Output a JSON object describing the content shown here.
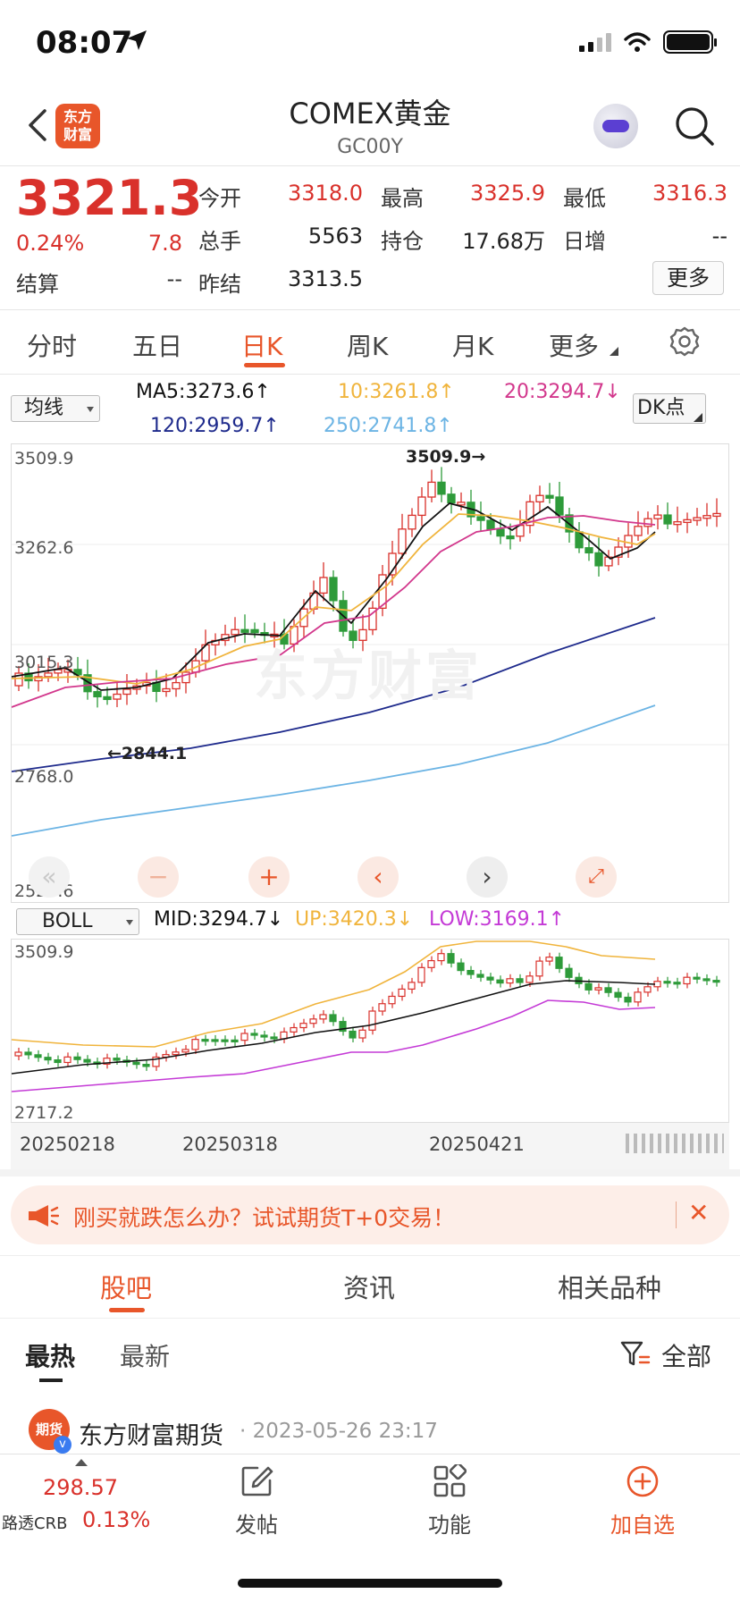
{
  "status": {
    "time": "08:07"
  },
  "header": {
    "title": "COMEX黄金",
    "subtitle": "GC00Y",
    "logo_line1": "东方",
    "logo_line2": "财富"
  },
  "quote": {
    "price": "3321.3",
    "change_pct": "0.24%",
    "change": "7.8",
    "settle_label": "结算",
    "settle": "--",
    "open_label": "今开",
    "open": "3318.0",
    "high_label": "最高",
    "high": "3325.9",
    "low_label": "最低",
    "low": "3316.3",
    "volume_label": "总手",
    "volume": "5563",
    "oi_label": "持仓",
    "oi": "17.68万",
    "daily_inc_label": "日增",
    "daily_inc": "--",
    "prev_settle_label": "昨结",
    "prev_settle": "3313.5",
    "more": "更多"
  },
  "period_tabs": [
    "分时",
    "五日",
    "日K",
    "周K",
    "月K",
    "更多"
  ],
  "ma": {
    "selector": "均线",
    "ma5": "MA5:3273.6↑",
    "ma10": "10:3261.8↑",
    "ma20": "20:3294.7↓",
    "ma120": "120:2959.7↑",
    "ma250": "250:2741.8↑",
    "dk_button": "DK点",
    "colors": {
      "ma5": "#111111",
      "ma10": "#f0b43c",
      "ma20": "#d2378c",
      "ma120": "#1e2a8c",
      "ma250": "#6cb4e4"
    }
  },
  "main_chart": {
    "y_labels": [
      "3509.9",
      "3262.6",
      "3015.3",
      "2768.0",
      "2520.6"
    ],
    "high_marker": "3509.9→",
    "low_marker": "←2844.1"
  },
  "boll": {
    "selector": "BOLL",
    "mid": "MID:3294.7↓",
    "up": "UP:3420.3↓",
    "low": "LOW:3169.1↑",
    "y_top": "3509.9",
    "y_bottom": "2717.2",
    "colors": {
      "mid": "#111111",
      "up": "#f0b43c",
      "low": "#c43ad6"
    }
  },
  "x_labels": [
    "20250218",
    "20250318",
    "20250421"
  ],
  "banner": {
    "text": "刚买就跌怎么办？试试期货T+0交易！",
    "close": "✕"
  },
  "content_tabs": [
    "股吧",
    "资讯",
    "相关品种"
  ],
  "sub_tabs": {
    "hot": "最热",
    "latest": "最新",
    "filter": "全部"
  },
  "post": {
    "avatar_text": "期货",
    "author": "东方财富期货",
    "time": "· 2023-05-26 23:17"
  },
  "bottom_nav": {
    "index_value": "298.57",
    "index_name": "路透CRB",
    "index_pct": "0.13%",
    "post": "发帖",
    "functions": "功能",
    "add_fav": "加自选"
  },
  "colors": {
    "up": "#d9312b",
    "down": "#2e9b3a",
    "accent": "#e8562a"
  }
}
